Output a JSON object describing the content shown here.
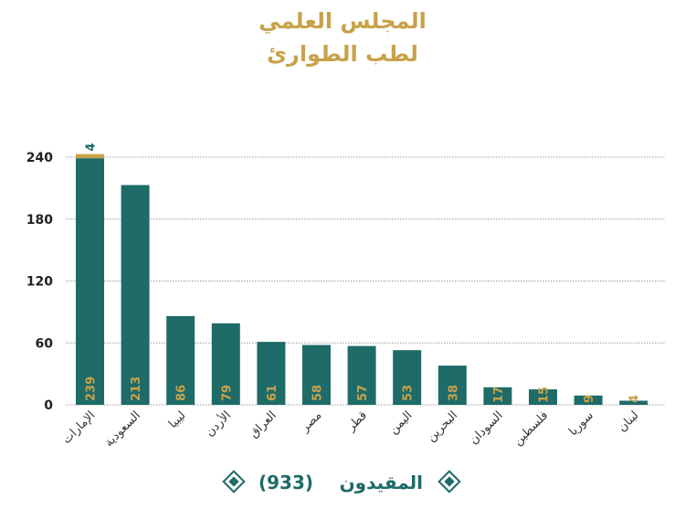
{
  "title": {
    "line1": "المجلس العلمي",
    "line2": "لطب الطوارئ"
  },
  "colors": {
    "title": "#C8A24A",
    "bar": "#1E6B68",
    "bar_top": "#C8A24A",
    "value_label": "#C8A24A",
    "stack_label": "#1E6B68",
    "grid": "#999999",
    "legend": "#1E6B68"
  },
  "legend": {
    "label": "المقيدون",
    "total": "(933)",
    "icon": "diamond-icon"
  },
  "chart_data": {
    "type": "bar",
    "title": "المجلس العلمي لطب الطوارئ",
    "categories": [
      "الإمارات",
      "السعودية",
      "ليبيا",
      "الأردن",
      "العراق",
      "مصر",
      "قطر",
      "اليمن",
      "البحرين",
      "السودان",
      "فلسطين",
      "سوريا",
      "لبنان"
    ],
    "series": [
      {
        "values": [
          239,
          213,
          86,
          79,
          61,
          58,
          57,
          53,
          38,
          17,
          15,
          9,
          4
        ]
      },
      {
        "values": [
          4,
          0,
          0,
          0,
          0,
          0,
          0,
          0,
          0,
          0,
          0,
          0,
          0
        ]
      }
    ],
    "value_labels": [
      "239",
      "213",
      "86",
      "79",
      "61",
      "58",
      "57",
      "53",
      "38",
      "17",
      "15",
      "9",
      "4"
    ],
    "stack_labels": [
      "4",
      "",
      "",
      "",
      "",
      "",
      "",
      "",
      "",
      "",
      "",
      "",
      ""
    ],
    "yticks": [
      "0",
      "60",
      "120",
      "180",
      "240"
    ],
    "ylim": [
      0,
      240
    ],
    "grid": true,
    "legend_position": "bottom"
  }
}
